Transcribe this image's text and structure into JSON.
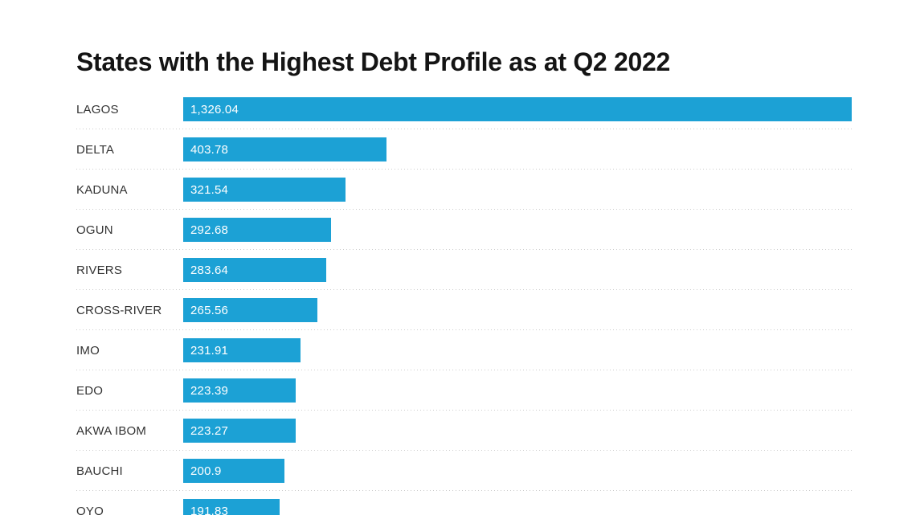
{
  "title": "States with the Highest Debt Profile as at Q2 2022",
  "colors": {
    "bar": "#1ca1d5",
    "title_text": "#141414",
    "label_text": "#333333",
    "value_text": "#ffffff",
    "separator": "#cccccc",
    "background": "#ffffff"
  },
  "chart_data": {
    "type": "bar",
    "orientation": "horizontal",
    "title": "States with the Highest Debt Profile as at Q2 2022",
    "categories": [
      "LAGOS",
      "DELTA",
      "KADUNA",
      "OGUN",
      "RIVERS",
      "CROSS-RIVER",
      "IMO",
      "EDO",
      "AKWA IBOM",
      "BAUCHI",
      "OYO"
    ],
    "values": [
      1326.04,
      403.78,
      321.54,
      292.68,
      283.64,
      265.56,
      231.91,
      223.39,
      223.27,
      200.9,
      191.83
    ],
    "value_labels": [
      "1,326.04",
      "403.78",
      "321.54",
      "292.68",
      "283.64",
      "265.56",
      "231.91",
      "223.39",
      "223.27",
      "200.9",
      "191.83"
    ],
    "xlim": [
      0,
      1326.04
    ],
    "value_label_position": "inside-left",
    "grid": "dotted-row-separators",
    "legend": "none",
    "last_row_clipped": true
  }
}
